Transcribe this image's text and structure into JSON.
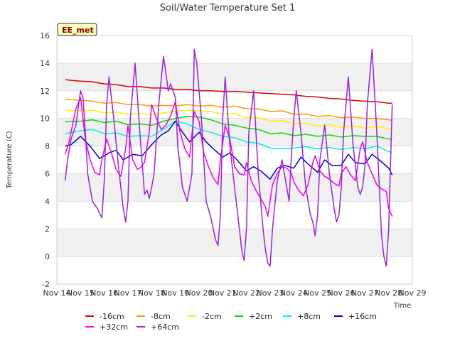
{
  "chart_data": {
    "type": "line",
    "title": "Soil/Water Temperature Set 1",
    "xlabel": "Time",
    "ylabel": "Temperature (C)",
    "badge": "EE_met",
    "ylim": [
      -2,
      16
    ],
    "yticks": [
      -2,
      0,
      2,
      4,
      6,
      8,
      10,
      12,
      14,
      16
    ],
    "xlim": [
      14,
      29
    ],
    "xticks": [
      14,
      15,
      16,
      17,
      18,
      19,
      20,
      21,
      22,
      23,
      24,
      25,
      26,
      27,
      28,
      29
    ],
    "xtick_labels": [
      "Nov 14",
      "Nov 15",
      "Nov 16",
      "Nov 17",
      "Nov 18",
      "Nov 19",
      "Nov 20",
      "Nov 21",
      "Nov 22",
      "Nov 23",
      "Nov 24",
      "Nov 25",
      "Nov 26",
      "Nov 27",
      "Nov 28",
      "Nov 29"
    ],
    "grid": true,
    "legend_position": "bottom",
    "series": [
      {
        "name": "-16cm",
        "color": "#dd0000",
        "x": [
          14.35,
          15.0,
          15.5,
          16.0,
          16.5,
          17.0,
          17.5,
          18.0,
          18.5,
          19.0,
          19.5,
          20.0,
          20.5,
          21.0,
          21.5,
          22.0,
          22.5,
          23.0,
          23.5,
          24.0,
          24.5,
          25.0,
          25.5,
          26.0,
          26.5,
          27.0,
          27.5,
          28.0,
          28.15
        ],
        "y": [
          12.8,
          12.7,
          12.65,
          12.5,
          12.45,
          12.3,
          12.3,
          12.2,
          12.2,
          12.1,
          12.1,
          12.0,
          12.0,
          11.95,
          11.95,
          11.9,
          11.85,
          11.8,
          11.75,
          11.7,
          11.6,
          11.55,
          11.45,
          11.4,
          11.3,
          11.25,
          11.2,
          11.1,
          11.1
        ]
      },
      {
        "name": "-8cm",
        "color": "#ff9900",
        "x": [
          14.35,
          15.0,
          15.5,
          16.0,
          16.5,
          17.0,
          17.5,
          18.0,
          18.5,
          19.0,
          19.5,
          20.0,
          20.5,
          21.0,
          21.5,
          22.0,
          22.5,
          23.0,
          23.5,
          24.0,
          24.5,
          25.0,
          25.5,
          26.0,
          26.5,
          27.0,
          27.5,
          28.0,
          28.15
        ],
        "y": [
          11.4,
          11.3,
          11.25,
          11.1,
          11.15,
          11.0,
          11.0,
          10.9,
          10.95,
          10.9,
          11.0,
          10.9,
          10.95,
          10.8,
          10.9,
          10.7,
          10.7,
          10.5,
          10.55,
          10.3,
          10.3,
          10.15,
          10.2,
          10.05,
          10.1,
          10.0,
          10.0,
          9.9,
          9.85
        ]
      },
      {
        "name": "-2cm",
        "color": "#ffee00",
        "x": [
          14.35,
          15.0,
          15.5,
          16.0,
          16.5,
          17.0,
          17.5,
          18.0,
          18.5,
          19.0,
          19.5,
          20.0,
          20.5,
          21.0,
          21.5,
          22.0,
          22.5,
          23.0,
          23.5,
          24.0,
          24.5,
          25.0,
          25.5,
          26.0,
          26.5,
          27.0,
          27.5,
          28.0,
          28.15
        ],
        "y": [
          10.6,
          10.55,
          10.6,
          10.4,
          10.45,
          10.3,
          10.35,
          10.25,
          10.4,
          10.5,
          10.6,
          10.55,
          10.5,
          10.3,
          10.35,
          10.05,
          10.1,
          9.8,
          9.85,
          9.6,
          9.65,
          9.45,
          9.55,
          9.35,
          9.45,
          9.3,
          9.4,
          9.25,
          9.2
        ]
      },
      {
        "name": "+2cm",
        "color": "#00dd00",
        "x": [
          14.35,
          15.0,
          15.5,
          16.0,
          16.5,
          17.0,
          17.5,
          18.0,
          18.5,
          19.0,
          19.5,
          20.0,
          20.5,
          21.0,
          21.5,
          22.0,
          22.5,
          23.0,
          23.5,
          24.0,
          24.5,
          25.0,
          25.5,
          26.0,
          26.5,
          27.0,
          27.5,
          28.0,
          28.15
        ],
        "y": [
          9.75,
          9.8,
          9.9,
          9.7,
          9.8,
          9.55,
          9.6,
          9.5,
          9.8,
          10.0,
          10.15,
          10.1,
          9.9,
          9.6,
          9.5,
          9.3,
          9.2,
          8.9,
          8.95,
          8.75,
          8.85,
          8.7,
          8.8,
          8.65,
          8.75,
          8.7,
          8.7,
          8.5,
          8.5
        ]
      },
      {
        "name": "+8cm",
        "color": "#00eeee",
        "x": [
          14.35,
          15.0,
          15.5,
          16.0,
          16.5,
          17.0,
          17.5,
          18.0,
          18.5,
          19.0,
          19.5,
          20.0,
          20.5,
          21.0,
          21.5,
          22.0,
          22.5,
          23.0,
          23.5,
          24.0,
          24.5,
          25.0,
          25.5,
          26.0,
          26.5,
          27.0,
          27.5,
          28.0,
          28.15
        ],
        "y": [
          8.9,
          9.1,
          9.2,
          8.9,
          8.95,
          8.7,
          8.75,
          8.7,
          9.2,
          9.8,
          9.6,
          9.2,
          9.0,
          8.7,
          8.6,
          8.3,
          8.2,
          7.85,
          7.8,
          7.85,
          7.95,
          7.8,
          7.9,
          7.75,
          7.9,
          7.8,
          8.0,
          7.6,
          7.55
        ]
      },
      {
        "name": "+16cm",
        "color": "#0000cc",
        "x": [
          14.35,
          14.6,
          15.0,
          15.4,
          15.8,
          16.2,
          16.5,
          16.8,
          17.2,
          17.6,
          18.0,
          18.4,
          18.7,
          19.0,
          19.3,
          19.6,
          20.0,
          20.3,
          20.6,
          21.0,
          21.3,
          21.6,
          22.0,
          22.3,
          22.6,
          23.0,
          23.3,
          23.6,
          24.0,
          24.3,
          24.6,
          25.0,
          25.3,
          25.6,
          26.0,
          26.3,
          26.6,
          27.0,
          27.3,
          27.6,
          28.0,
          28.15
        ],
        "y": [
          8.0,
          8.1,
          8.7,
          8.0,
          7.1,
          7.5,
          7.7,
          7.0,
          7.4,
          7.3,
          8.1,
          8.8,
          9.1,
          9.8,
          9.0,
          8.3,
          9.0,
          8.3,
          7.8,
          7.2,
          7.5,
          7.0,
          6.2,
          6.5,
          6.2,
          5.6,
          6.4,
          6.6,
          6.4,
          7.2,
          6.7,
          6.1,
          7.0,
          6.6,
          6.6,
          7.4,
          6.8,
          6.7,
          7.4,
          7.0,
          6.4,
          5.9
        ]
      },
      {
        "name": "+32cm",
        "color": "#ee00ee",
        "x": [
          14.35,
          14.5,
          14.8,
          15.0,
          15.2,
          15.4,
          15.6,
          15.8,
          15.9,
          16.1,
          16.3,
          16.5,
          16.7,
          16.9,
          17.0,
          17.2,
          17.4,
          17.5,
          17.7,
          17.9,
          18.0,
          18.2,
          18.4,
          18.6,
          18.8,
          19.0,
          19.2,
          19.4,
          19.6,
          19.8,
          20.0,
          20.2,
          20.4,
          20.6,
          20.8,
          20.9,
          21.1,
          21.3,
          21.5,
          21.7,
          21.9,
          22.0,
          22.2,
          22.4,
          22.6,
          22.8,
          22.9,
          23.1,
          23.3,
          23.5,
          23.7,
          23.9,
          24.0,
          24.2,
          24.4,
          24.6,
          24.8,
          24.9,
          25.1,
          25.3,
          25.5,
          25.7,
          25.9,
          26.0,
          26.2,
          26.4,
          26.6,
          26.8,
          26.9,
          27.1,
          27.3,
          27.5,
          27.7,
          27.9,
          28.0,
          28.15
        ],
        "y": [
          7.4,
          8.2,
          10.7,
          11.5,
          8.5,
          7.0,
          6.1,
          5.9,
          7.0,
          8.5,
          7.5,
          6.3,
          5.8,
          7.8,
          9.5,
          7.0,
          6.3,
          6.4,
          6.8,
          9.0,
          11.0,
          10.0,
          9.2,
          9.5,
          10.2,
          11.2,
          9.0,
          7.8,
          7.2,
          10.5,
          9.8,
          7.5,
          6.5,
          5.7,
          5.2,
          7.0,
          9.5,
          8.5,
          6.5,
          6.0,
          5.9,
          6.8,
          5.5,
          4.8,
          4.2,
          3.6,
          2.9,
          5.2,
          6.0,
          6.5,
          6.4,
          6.0,
          5.4,
          4.8,
          4.4,
          5.2,
          6.8,
          7.3,
          6.2,
          5.8,
          5.6,
          5.3,
          5.1,
          6.0,
          6.5,
          5.9,
          5.5,
          7.8,
          8.3,
          6.8,
          6.0,
          5.2,
          4.9,
          4.7,
          3.5,
          2.9
        ]
      },
      {
        "name": "+64cm",
        "color": "#9922dd",
        "x": [
          14.35,
          14.45,
          14.6,
          14.8,
          15.0,
          15.1,
          15.2,
          15.3,
          15.5,
          15.7,
          15.9,
          16.0,
          16.1,
          16.2,
          16.4,
          16.6,
          16.8,
          16.9,
          17.0,
          17.1,
          17.3,
          17.5,
          17.7,
          17.8,
          17.9,
          18.0,
          18.1,
          18.3,
          18.5,
          18.7,
          18.8,
          18.9,
          19.0,
          19.1,
          19.3,
          19.5,
          19.7,
          19.8,
          19.9,
          20.0,
          20.1,
          20.3,
          20.5,
          20.7,
          20.8,
          20.9,
          21.0,
          21.1,
          21.3,
          21.5,
          21.7,
          21.8,
          21.9,
          22.0,
          22.1,
          22.3,
          22.5,
          22.7,
          22.8,
          22.9,
          23.0,
          23.1,
          23.3,
          23.5,
          23.7,
          23.8,
          23.9,
          24.0,
          24.1,
          24.3,
          24.5,
          24.7,
          24.8,
          24.9,
          25.0,
          25.1,
          25.3,
          25.5,
          25.7,
          25.8,
          25.9,
          26.0,
          26.1,
          26.3,
          26.5,
          26.7,
          26.8,
          26.9,
          27.0,
          27.1,
          27.3,
          27.5,
          27.7,
          27.8,
          27.9,
          28.0,
          28.1,
          28.15
        ],
        "y": [
          5.5,
          7.0,
          8.5,
          9.5,
          12.0,
          11.5,
          9.0,
          6.0,
          4.0,
          3.5,
          2.8,
          5.5,
          11.0,
          13.0,
          10.0,
          6.5,
          3.5,
          2.5,
          4.0,
          10.0,
          14.0,
          9.0,
          4.5,
          4.8,
          4.2,
          5.0,
          6.0,
          11.0,
          14.5,
          12.0,
          12.5,
          12.0,
          11.5,
          8.0,
          5.0,
          4.0,
          6.0,
          15.0,
          14.0,
          12.0,
          10.0,
          4.0,
          2.8,
          1.2,
          0.8,
          3.0,
          10.0,
          13.0,
          8.0,
          5.0,
          2.0,
          0.5,
          -0.3,
          2.0,
          9.0,
          12.0,
          6.0,
          2.0,
          0.5,
          -0.5,
          -0.7,
          2.0,
          5.5,
          7.0,
          5.0,
          4.0,
          7.5,
          10.0,
          12.0,
          9.0,
          5.0,
          3.0,
          2.5,
          1.5,
          3.0,
          7.0,
          9.5,
          6.0,
          3.5,
          2.5,
          3.0,
          5.0,
          9.0,
          13.0,
          8.0,
          5.0,
          4.5,
          5.0,
          6.5,
          11.0,
          15.0,
          9.0,
          1.5,
          0.0,
          -0.7,
          2.0,
          8.0,
          11.0
        ]
      }
    ]
  }
}
